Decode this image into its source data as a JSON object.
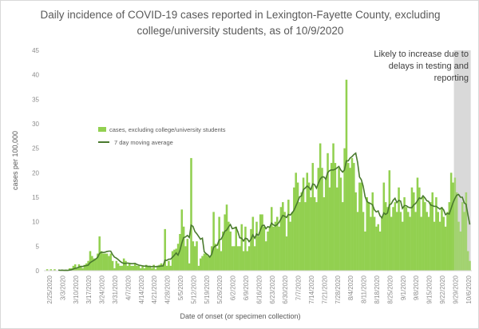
{
  "chart_data": {
    "type": "bar",
    "title": "Daily incidence of COVID-19 cases reported in Lexington-Fayette County, excluding college/university students, as of 10/9/2020",
    "title_lines": [
      "Daily incidence of COVID-19 cases reported in Lexington-Fayette County, excluding",
      "college/university students, as of 10/9/2020"
    ],
    "xlabel": "Date of onset (or specimen collection)",
    "ylabel": "cases per 100,000",
    "ylim": [
      0,
      45
    ],
    "yticks": [
      0,
      5,
      10,
      15,
      20,
      25,
      30,
      35,
      40,
      45
    ],
    "x_start": "2/25/2020",
    "x_end": "10/8/2020",
    "xtick_labels": [
      "2/25/2020",
      "3/3/2020",
      "3/10/2020",
      "3/17/2020",
      "3/24/2020",
      "3/31/2020",
      "4/7/2020",
      "4/14/2020",
      "4/21/2020",
      "4/28/2020",
      "5/5/2020",
      "5/12/2020",
      "5/19/2020",
      "5/26/2020",
      "6/2/2020",
      "6/9/2020",
      "6/16/2020",
      "6/23/2020",
      "6/30/2020",
      "7/7/2020",
      "7/14/2020",
      "7/21/2020",
      "7/28/2020",
      "8/4/2020",
      "8/11/2020",
      "8/18/2020",
      "8/25/2020",
      "9/1/2020",
      "9/8/2020",
      "9/15/2020",
      "9/22/2020",
      "9/29/2020",
      "10/6/2020"
    ],
    "grid": false,
    "legend_placement": "top-left",
    "series": [
      {
        "name": "cases, excluding college/university students",
        "type": "bar",
        "color": "#92d050",
        "values": [
          0.3,
          0,
          0.3,
          0,
          0.3,
          0,
          0,
          0,
          0.2,
          0,
          0.2,
          0,
          0.5,
          0.5,
          1,
          1.3,
          0.5,
          1.3,
          1,
          0.5,
          1.2,
          1.5,
          2,
          4,
          3,
          2.5,
          2.5,
          3.5,
          7,
          4,
          3.5,
          3.5,
          3.5,
          3,
          3.5,
          2,
          0.5,
          2,
          1.5,
          1,
          1,
          2.5,
          2,
          1,
          1.5,
          1,
          1,
          1.5,
          1,
          1,
          0.5,
          1,
          0.5,
          1.2,
          1,
          1,
          0.5,
          1.2,
          0.3,
          1,
          1.2,
          1.5,
          1.2,
          8.5,
          1,
          2,
          1,
          4,
          4.3,
          4.5,
          5.5,
          7.5,
          12.5,
          9,
          5,
          6.5,
          1.5,
          23,
          6,
          5,
          6,
          1,
          2.5,
          3,
          3.5,
          3.5,
          3,
          3,
          5,
          12,
          5.5,
          4.5,
          11,
          4,
          8,
          11.5,
          13.5,
          10,
          8,
          5,
          5,
          9,
          5,
          5,
          9.5,
          4,
          9,
          4,
          5,
          8.5,
          11,
          5,
          10,
          7,
          11.5,
          11.5,
          9,
          6,
          8,
          9,
          13,
          9,
          10,
          11,
          9,
          13,
          14,
          12,
          7,
          14.5,
          10,
          12,
          17,
          20,
          18,
          14,
          16,
          19,
          14,
          20,
          18,
          15,
          22,
          15,
          14,
          21,
          26,
          21,
          15,
          19,
          24,
          17,
          22,
          26,
          22,
          17,
          21,
          19,
          14,
          25,
          39,
          22,
          21,
          23,
          22,
          16,
          12,
          18,
          18,
          12,
          8,
          15,
          14,
          11,
          16,
          11,
          9,
          9.5,
          8,
          11,
          18,
          14,
          13,
          20.5,
          11,
          13,
          14,
          12,
          17,
          12,
          10,
          15,
          13,
          12,
          11,
          17,
          16,
          12,
          19,
          17,
          11,
          15,
          14,
          12,
          11,
          14,
          16,
          10,
          15,
          12,
          10,
          13,
          11,
          9,
          12,
          14,
          20,
          18,
          19,
          16,
          10,
          8,
          14,
          12,
          16,
          4,
          2
        ]
      },
      {
        "name": "7 day moving average",
        "type": "line",
        "color": "#4a7a2e"
      }
    ],
    "annotation": {
      "text": "Likely to increase due to delays in testing and reporting",
      "shaded_from": "9/30/2020",
      "shaded_to": "10/8/2020",
      "color": "#d9d9d9"
    }
  }
}
